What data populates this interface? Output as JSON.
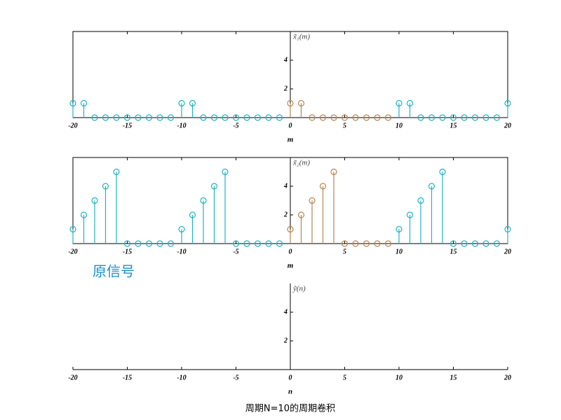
{
  "chart_data": [
    {
      "type": "stem",
      "ylabel": "x̃₁(m)",
      "xlabel": "m",
      "xlim": [
        -20,
        20
      ],
      "ylim": [
        0,
        6
      ],
      "xticks": [
        -20,
        -15,
        -10,
        -5,
        0,
        5,
        10,
        15,
        20
      ],
      "yticks": [
        2,
        4
      ],
      "box": true,
      "series": [
        {
          "color": "#1fb5c0",
          "x": [
            -20,
            -19,
            -18,
            -17,
            -16,
            -15,
            -14,
            -13,
            -12,
            -11,
            -10,
            -9,
            -8,
            -7,
            -6,
            -5,
            -4,
            -3,
            -2,
            -1,
            10,
            11,
            12,
            13,
            14,
            15,
            16,
            17,
            18,
            19,
            20
          ],
          "values": [
            1,
            1,
            0,
            0,
            0,
            0,
            0,
            0,
            0,
            0,
            1,
            1,
            0,
            0,
            0,
            0,
            0,
            0,
            0,
            0,
            1,
            1,
            0,
            0,
            0,
            0,
            0,
            0,
            0,
            0,
            1
          ]
        },
        {
          "color": "#b8864f",
          "x": [
            0,
            1,
            2,
            3,
            4,
            5,
            6,
            7,
            8,
            9
          ],
          "values": [
            1,
            1,
            0,
            0,
            0,
            0,
            0,
            0,
            0,
            0
          ]
        }
      ]
    },
    {
      "type": "stem",
      "ylabel": "x̃₂(m)",
      "xlabel": "m",
      "xlim": [
        -20,
        20
      ],
      "ylim": [
        0,
        6
      ],
      "xticks": [
        -20,
        -15,
        -10,
        -5,
        0,
        5,
        10,
        15,
        20
      ],
      "yticks": [
        2,
        4
      ],
      "box": true,
      "annotation": "原信号",
      "series": [
        {
          "color": "#1fb5c0",
          "x": [
            -20,
            -19,
            -18,
            -17,
            -16,
            -15,
            -14,
            -13,
            -12,
            -11,
            -10,
            -9,
            -8,
            -7,
            -6,
            -5,
            -4,
            -3,
            -2,
            -1,
            10,
            11,
            12,
            13,
            14,
            15,
            16,
            17,
            18,
            19,
            20
          ],
          "values": [
            1,
            2,
            3,
            4,
            5,
            0,
            0,
            0,
            0,
            0,
            1,
            2,
            3,
            4,
            5,
            0,
            0,
            0,
            0,
            0,
            1,
            2,
            3,
            4,
            5,
            0,
            0,
            0,
            0,
            0,
            1
          ]
        },
        {
          "color": "#b8864f",
          "x": [
            0,
            1,
            2,
            3,
            4,
            5,
            6,
            7,
            8,
            9
          ],
          "values": [
            1,
            2,
            3,
            4,
            5,
            0,
            0,
            0,
            0,
            0
          ]
        }
      ]
    },
    {
      "type": "stem",
      "ylabel": "ỹ(n)",
      "xlabel": "n",
      "xlim": [
        -20,
        20
      ],
      "ylim": [
        0,
        6
      ],
      "xticks": [
        -20,
        -15,
        -10,
        -5,
        0,
        5,
        10,
        15,
        20
      ],
      "yticks": [
        2,
        4
      ],
      "box": false,
      "series": [],
      "caption": "周期N=10的周期卷积"
    }
  ]
}
